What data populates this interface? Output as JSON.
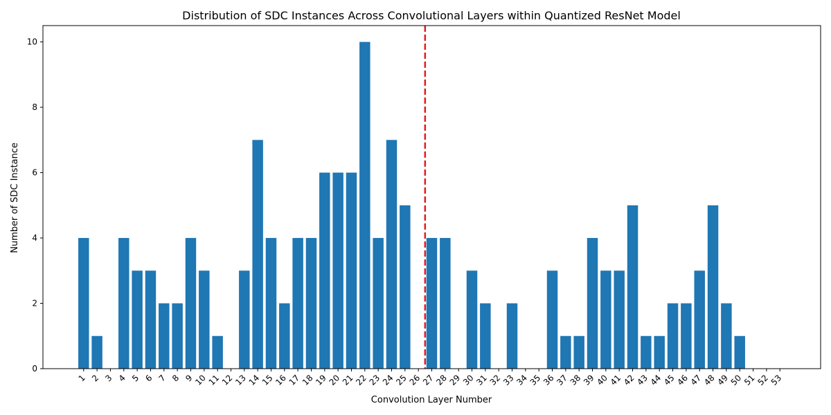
{
  "chart_data": {
    "type": "bar",
    "title": "Distribution of SDC Instances Across Convolutional Layers within Quantized ResNet Model",
    "xlabel": "Convolution Layer Number",
    "ylabel": "Number of SDC Instance",
    "categories": [
      "1",
      "2",
      "3",
      "4",
      "5",
      "6",
      "7",
      "8",
      "9",
      "10",
      "11",
      "12",
      "13",
      "14",
      "15",
      "16",
      "17",
      "18",
      "19",
      "20",
      "21",
      "22",
      "23",
      "24",
      "25",
      "26",
      "27",
      "28",
      "29",
      "30",
      "31",
      "32",
      "33",
      "34",
      "35",
      "36",
      "37",
      "38",
      "39",
      "40",
      "41",
      "42",
      "43",
      "44",
      "45",
      "46",
      "47",
      "48",
      "49",
      "50",
      "51",
      "52",
      "53"
    ],
    "values": [
      4,
      1,
      0,
      4,
      3,
      3,
      2,
      2,
      4,
      3,
      1,
      0,
      3,
      7,
      4,
      2,
      4,
      4,
      6,
      6,
      6,
      10,
      4,
      7,
      5,
      0,
      4,
      4,
      0,
      3,
      2,
      0,
      2,
      0,
      0,
      3,
      1,
      1,
      4,
      3,
      3,
      5,
      1,
      1,
      2,
      2,
      3,
      5,
      2,
      1,
      0,
      0,
      0
    ],
    "ylim": [
      0,
      10.5
    ],
    "yticks": [
      0,
      2,
      4,
      6,
      8,
      10
    ],
    "bar_color": "#1f77b4",
    "reference_line": {
      "x_position": 26.5,
      "color": "#e41a1c",
      "style": "dashed"
    },
    "grid": false,
    "legend": "none"
  }
}
